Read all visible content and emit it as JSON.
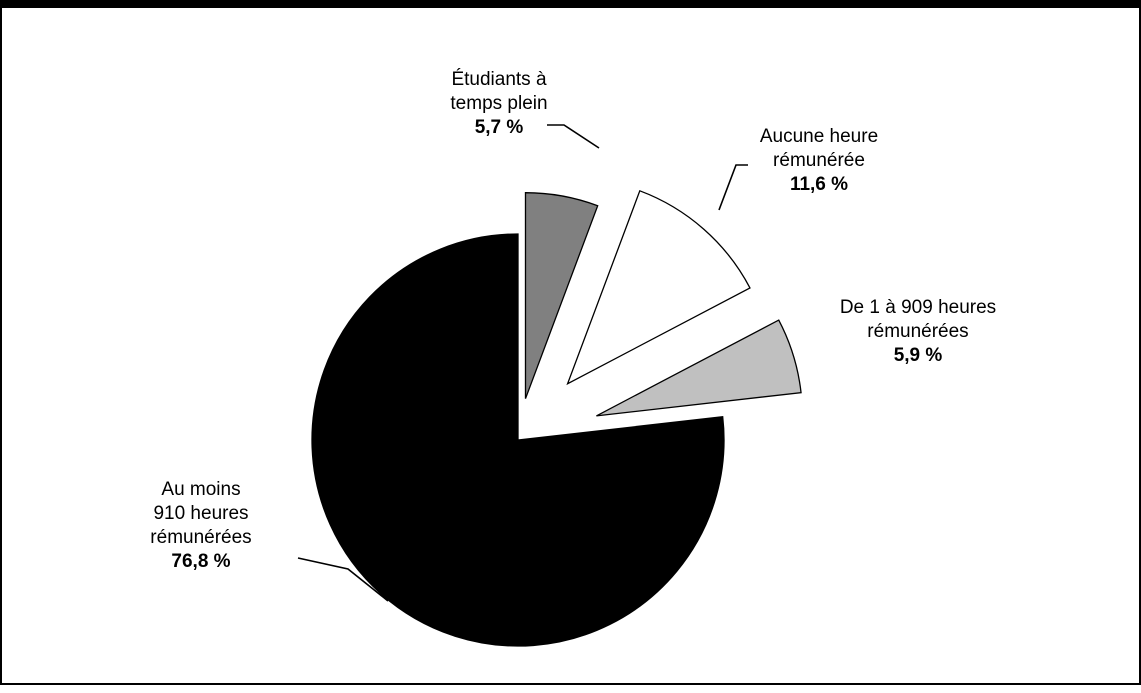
{
  "chart_data": {
    "type": "pie",
    "exploded": true,
    "slices": [
      {
        "key": "fulltime",
        "label_lines": [
          "Étudiants à",
          "temps plein"
        ],
        "value_label": "5,7 %",
        "value": 5.7,
        "color": "#808080"
      },
      {
        "key": "none",
        "label_lines": [
          "Aucune heure",
          "rémunérée"
        ],
        "value_label": "11,6 %",
        "value": 11.6,
        "color": "#ffffff"
      },
      {
        "key": "some",
        "label_lines": [
          "De 1 à 909 heures",
          "rémunérées"
        ],
        "value_label": "5,9 %",
        "value": 5.9,
        "color": "#c0c0c0"
      },
      {
        "key": "atleast",
        "label_lines": [
          "Au moins",
          "910 heures",
          "rémunérées"
        ],
        "value_label": "76,8 %",
        "value": 76.8,
        "color": "#000000"
      }
    ]
  }
}
